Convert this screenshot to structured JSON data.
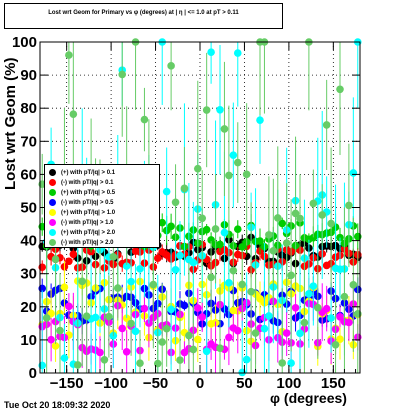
{
  "chart_data": {
    "type": "scatter",
    "title": "Lost wrt Geom for Primary vs φ (degrees) at | η | <= 1.0 at pT > 0.11",
    "xlabel": "φ (degrees)",
    "ylabel": "Lost  wrt  Geom (%)",
    "xlim": [
      -180,
      180
    ],
    "ylim": [
      0,
      100
    ],
    "x_ticks": [
      -150,
      -100,
      -50,
      0,
      50,
      100,
      150
    ],
    "y_ticks": [
      0,
      10,
      20,
      30,
      40,
      50,
      60,
      70,
      80,
      90,
      100
    ],
    "grid": true,
    "legend_position": "left",
    "series": [
      {
        "name": "(+) with pT/|q| > 0.1",
        "color": "#000000",
        "level": 37,
        "spread": 4,
        "errors": 2
      },
      {
        "name": "(-) with pT/|q| > 0.1",
        "color": "#ff0000",
        "level": 35,
        "spread": 4,
        "errors": 2
      },
      {
        "name": "(+) with pT/|q| > 0.5",
        "color": "#00cc00",
        "level": 42,
        "spread": 4,
        "errors": 3
      },
      {
        "name": "(-) with pT/|q| > 0.5",
        "color": "#0000ff",
        "level": 20,
        "spread": 6,
        "errors": 3
      },
      {
        "name": "(+) with pT/|q| > 1.0",
        "color": "#ffff00",
        "level": 18,
        "spread": 10,
        "errors": 6
      },
      {
        "name": "(-) with pT/|q| > 1.0",
        "color": "#ff00ff",
        "level": 14,
        "spread": 8,
        "errors": 6
      },
      {
        "name": "(+) with pT/|q| > 2.0",
        "color": "#00ffff",
        "level": 30,
        "spread": 30,
        "errors": 18
      },
      {
        "name": "(-) with pT/|q| > 2.0",
        "color": "#66cc66",
        "level": 32,
        "spread": 30,
        "errors": 18
      }
    ]
  },
  "timestamp": "Tue Oct 20 18:09:32 2020"
}
